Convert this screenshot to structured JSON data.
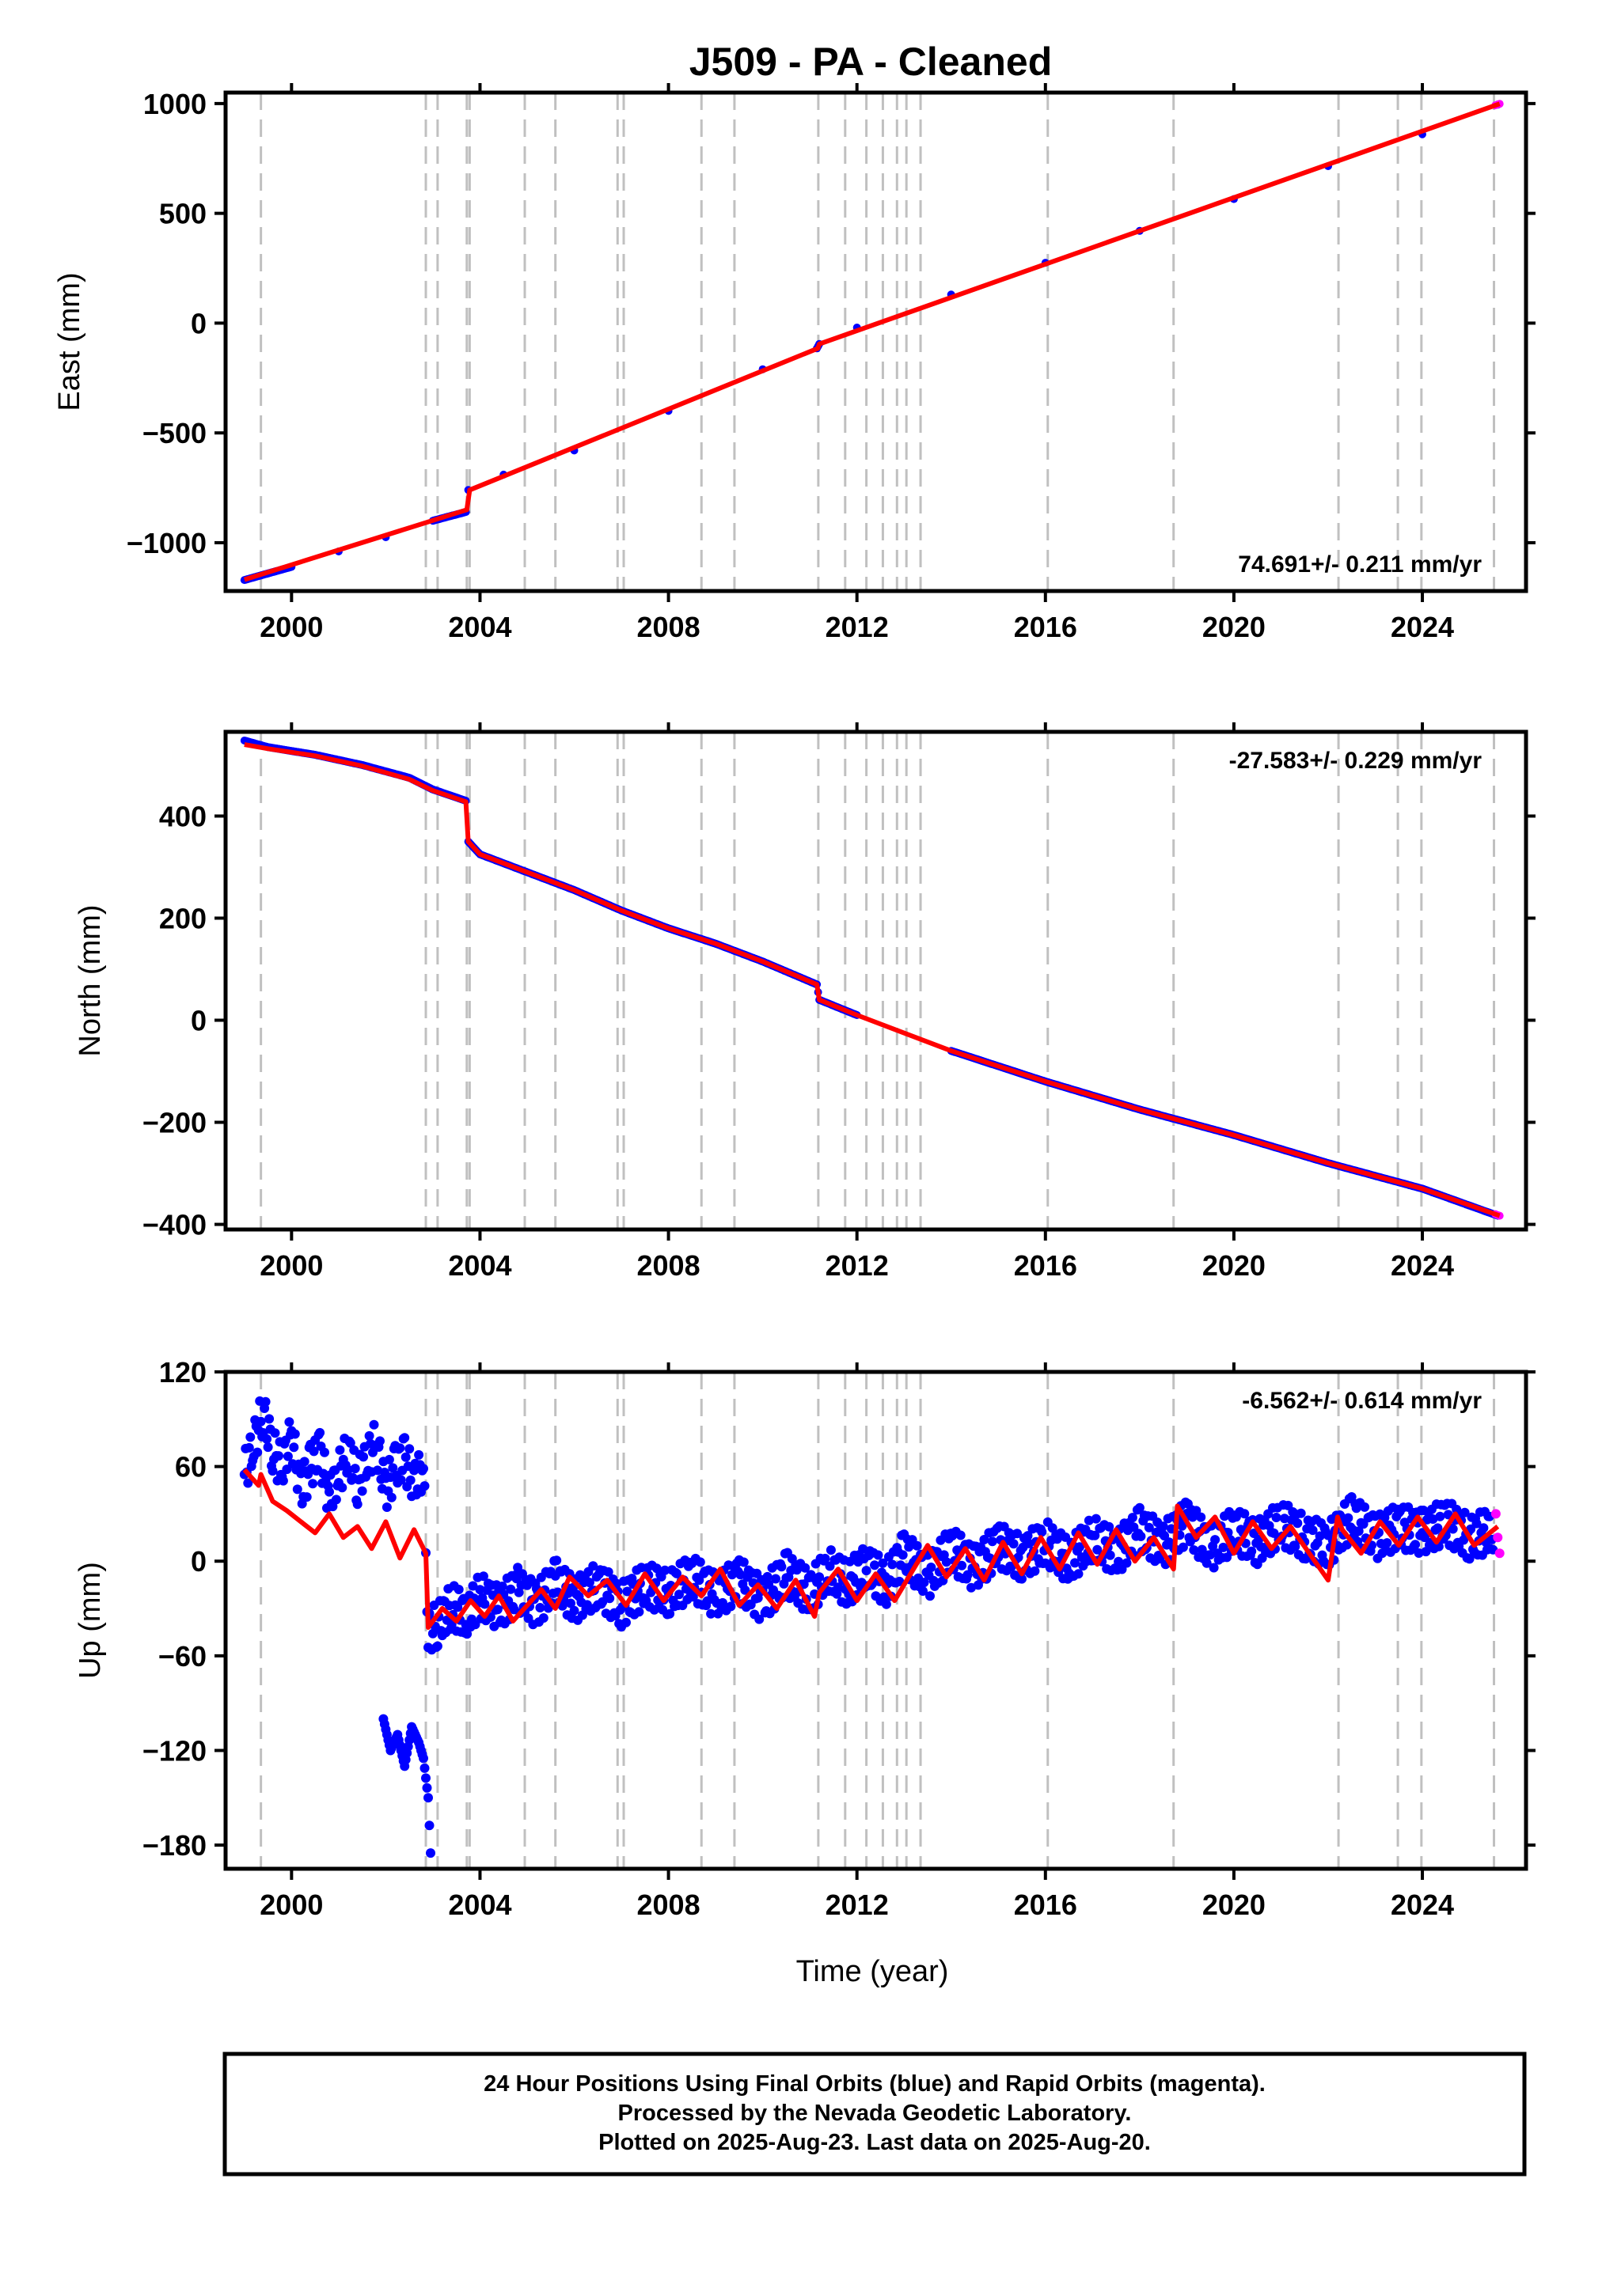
{
  "title": "J509  - PA - Cleaned",
  "xlabel": "Time (year)",
  "colors": {
    "final": "#0000ff",
    "rapid": "#ff00ff",
    "model": "#ff0000",
    "event": "#c0c0c0",
    "frame": "#000000"
  },
  "chart_data": [
    {
      "type": "scatter",
      "ylabel": "East (mm)",
      "rate": "74.691+/- 0.211 mm/yr",
      "rate_position": "bottom-right",
      "xlim": [
        1998.6,
        2026.2
      ],
      "ylim": [
        -1220,
        1050
      ],
      "xticks": [
        2000,
        2004,
        2008,
        2012,
        2016,
        2020,
        2024
      ],
      "xtick_labels": [
        "2000",
        "2004",
        "2008",
        "2012",
        "2016",
        "2020",
        "2024"
      ],
      "yticks": [
        -1000,
        -500,
        0,
        500,
        1000
      ],
      "ytick_labels": [
        "−1000",
        "−500",
        "0",
        "500",
        "1000"
      ],
      "event_lines": [
        1999.35,
        2002.85,
        2003.1,
        2003.72,
        2003.78,
        2004.95,
        2005.6,
        2006.92,
        2007.05,
        2008.7,
        2009.4,
        2011.18,
        2011.75,
        2012.2,
        2012.55,
        2012.85,
        2013.05,
        2013.35,
        2016.05,
        2018.72,
        2022.22,
        2023.48,
        2023.98,
        2025.52
      ],
      "series": [
        {
          "name": "Final Orbits",
          "color": "blue",
          "x": [
            1999.0,
            2000.0,
            2001.0,
            2002.0,
            2003.0,
            2003.7,
            2003.75,
            2004.5,
            2006.0,
            2008.0,
            2010.0,
            2011.15,
            2011.2,
            2012.0,
            2014.0,
            2016.0,
            2018.0,
            2020.0,
            2022.0,
            2024.0,
            2025.6
          ],
          "y": [
            -1170,
            -1110,
            -1040,
            -975,
            -900,
            -860,
            -760,
            -690,
            -580,
            -400,
            -210,
            -115,
            -95,
            -20,
            130,
            275,
            420,
            565,
            715,
            860,
            995
          ]
        },
        {
          "name": "Rapid Orbits",
          "color": "magenta",
          "x": [
            2025.55,
            2025.6,
            2025.64
          ],
          "y": [
            992,
            996,
            999
          ]
        },
        {
          "name": "Model",
          "color": "red",
          "x": [
            1999.0,
            2003.72,
            2003.78,
            2011.17,
            2011.2,
            2025.64
          ],
          "y": [
            -1168,
            -850,
            -760,
            -115,
            -95,
            999
          ]
        }
      ]
    },
    {
      "type": "scatter",
      "ylabel": "North (mm)",
      "rate": "-27.583+/- 0.229 mm/yr",
      "rate_position": "top-right",
      "xlim": [
        1998.6,
        2026.2
      ],
      "ylim": [
        -410,
        565
      ],
      "xticks": [
        2000,
        2004,
        2008,
        2012,
        2016,
        2020,
        2024
      ],
      "xtick_labels": [
        "2000",
        "2004",
        "2008",
        "2012",
        "2016",
        "2020",
        "2024"
      ],
      "yticks": [
        -400,
        -200,
        0,
        200,
        400
      ],
      "ytick_labels": [
        "−400",
        "−200",
        "0",
        "200",
        "400"
      ],
      "event_lines": [
        1999.35,
        2002.85,
        2003.1,
        2003.72,
        2003.78,
        2004.95,
        2005.6,
        2006.92,
        2007.05,
        2008.7,
        2009.4,
        2011.18,
        2011.75,
        2012.2,
        2012.55,
        2012.85,
        2013.05,
        2013.35,
        2016.05,
        2018.72,
        2022.22,
        2023.48,
        2023.98,
        2025.52
      ],
      "series": [
        {
          "name": "Final Orbits",
          "color": "blue",
          "x": [
            1999.0,
            1999.5,
            2000.5,
            2001.5,
            2002.5,
            2003.0,
            2003.7,
            2003.75,
            2004.0,
            2005.0,
            2006.0,
            2007.0,
            2008.0,
            2009.0,
            2010.0,
            2011.15,
            2011.2,
            2012.0,
            2014.0,
            2016.0,
            2018.0,
            2020.0,
            2022.0,
            2024.0,
            2025.6
          ],
          "y": [
            548,
            535,
            520,
            500,
            475,
            452,
            430,
            350,
            325,
            290,
            255,
            215,
            180,
            150,
            115,
            70,
            40,
            10,
            -60,
            -120,
            -175,
            -225,
            -280,
            -330,
            -383
          ]
        },
        {
          "name": "Rapid Orbits",
          "color": "magenta",
          "x": [
            2025.55,
            2025.6,
            2025.64
          ],
          "y": [
            -380,
            -382,
            -383
          ]
        },
        {
          "name": "Model",
          "color": "red",
          "x": [
            1999.0,
            1999.5,
            2000.5,
            2001.5,
            2002.5,
            2003.0,
            2003.7,
            2003.75,
            2004.0,
            2005.0,
            2006.0,
            2007.0,
            2008.0,
            2009.0,
            2010.0,
            2011.15,
            2011.2,
            2012.0,
            2014.0,
            2016.0,
            2018.0,
            2020.0,
            2022.0,
            2024.0,
            2025.64
          ],
          "y": [
            540,
            532,
            518,
            498,
            472,
            450,
            428,
            350,
            325,
            290,
            255,
            215,
            180,
            150,
            115,
            70,
            40,
            10,
            -60,
            -120,
            -175,
            -225,
            -280,
            -330,
            -383
          ]
        }
      ]
    },
    {
      "type": "scatter",
      "ylabel": "Up (mm)",
      "rate": "-6.562+/- 0.614 mm/yr",
      "rate_position": "top-right",
      "xlim": [
        1998.6,
        2026.2
      ],
      "ylim": [
        -195,
        120
      ],
      "xticks": [
        2000,
        2004,
        2008,
        2012,
        2016,
        2020,
        2024
      ],
      "xtick_labels": [
        "2000",
        "2004",
        "2008",
        "2012",
        "2016",
        "2020",
        "2024"
      ],
      "yticks": [
        -180,
        -120,
        -60,
        0,
        60,
        120
      ],
      "ytick_labels": [
        "−180",
        "−120",
        "−60",
        "0",
        "60",
        "120"
      ],
      "event_lines": [
        1999.35,
        2002.85,
        2003.1,
        2003.72,
        2003.78,
        2004.95,
        2005.6,
        2006.92,
        2007.05,
        2008.7,
        2009.4,
        2011.18,
        2011.75,
        2012.2,
        2012.55,
        2012.85,
        2013.05,
        2013.35,
        2016.05,
        2018.72,
        2022.22,
        2023.48,
        2023.98,
        2025.52
      ],
      "series": [
        {
          "name": "Final Orbits",
          "color": "blue",
          "x": [
            1999.0,
            1999.2,
            1999.4,
            1999.6,
            1999.8,
            2000.0,
            2000.2,
            2000.4,
            2000.6,
            2000.8,
            2001.0,
            2001.2,
            2001.4,
            2001.6,
            2001.8,
            2002.0,
            2002.2,
            2002.4,
            2002.6,
            2002.8,
            2002.9,
            2003.1,
            2003.4,
            2003.7,
            2004.0,
            2004.4,
            2004.8,
            2005.2,
            2005.6,
            2006.0,
            2006.5,
            2007.0,
            2007.5,
            2008.0,
            2008.5,
            2009.0,
            2009.5,
            2010.0,
            2010.5,
            2011.0,
            2011.4,
            2011.8,
            2012.2,
            2012.6,
            2013.0,
            2013.5,
            2014.0,
            2014.5,
            2015.0,
            2015.5,
            2016.0,
            2016.5,
            2017.0,
            2017.5,
            2018.0,
            2018.5,
            2019.0,
            2019.5,
            2020.0,
            2020.5,
            2021.0,
            2021.5,
            2022.0,
            2022.5,
            2023.0,
            2023.5,
            2024.0,
            2024.5,
            2025.0,
            2025.5
          ],
          "y": [
            55,
            75,
            95,
            70,
            60,
            80,
            45,
            60,
            70,
            40,
            55,
            70,
            50,
            65,
            75,
            45,
            60,
            65,
            50,
            60,
            -45,
            -40,
            -28,
            -35,
            -22,
            -30,
            -18,
            -28,
            -12,
            -25,
            -15,
            -28,
            -15,
            -20,
            -10,
            -22,
            -12,
            -25,
            -8,
            -20,
            -5,
            -15,
            -2,
            -15,
            5,
            -10,
            8,
            -5,
            10,
            2,
            12,
            0,
            15,
            5,
            20,
            10,
            25,
            8,
            20,
            12,
            24,
            15,
            10,
            28,
            15,
            22,
            18,
            25,
            15,
            20
          ]
        },
        {
          "name": "Final Orbits (cluster 2002)",
          "color": "blue",
          "x": [
            2001.95,
            2002.1,
            2002.25,
            2002.4,
            2002.55,
            2002.7,
            2002.8,
            2002.9,
            2002.95
          ],
          "y": [
            -100,
            -120,
            -110,
            -130,
            -105,
            -115,
            -125,
            -150,
            -185
          ]
        },
        {
          "name": "Rapid Orbits",
          "color": "magenta",
          "x": [
            2025.56,
            2025.6,
            2025.64
          ],
          "y": [
            30,
            15,
            5
          ]
        },
        {
          "name": "Model",
          "color": "red",
          "x": [
            1999.0,
            1999.3,
            1999.35,
            1999.6,
            1999.9,
            2000.2,
            2000.5,
            2000.8,
            2001.1,
            2001.4,
            2001.7,
            2002.0,
            2002.3,
            2002.6,
            2002.85,
            2002.9,
            2003.2,
            2003.5,
            2003.8,
            2004.1,
            2004.4,
            2004.7,
            2005.0,
            2005.3,
            2005.6,
            2005.9,
            2006.3,
            2006.7,
            2007.1,
            2007.5,
            2007.9,
            2008.3,
            2008.7,
            2009.1,
            2009.5,
            2009.9,
            2010.3,
            2010.7,
            2011.1,
            2011.2,
            2011.6,
            2012.0,
            2012.4,
            2012.8,
            2013.2,
            2013.5,
            2013.9,
            2014.3,
            2014.7,
            2015.1,
            2015.5,
            2015.9,
            2016.3,
            2016.7,
            2017.1,
            2017.5,
            2017.9,
            2018.3,
            2018.72,
            2018.8,
            2019.2,
            2019.6,
            2020.0,
            2020.4,
            2020.8,
            2021.2,
            2021.6,
            2022.0,
            2022.2,
            2022.3,
            2022.7,
            2023.1,
            2023.5,
            2023.9,
            2024.3,
            2024.7,
            2025.1,
            2025.6
          ],
          "y": [
            58,
            48,
            55,
            38,
            32,
            25,
            18,
            30,
            15,
            22,
            8,
            25,
            2,
            20,
            5,
            -42,
            -30,
            -38,
            -25,
            -35,
            -22,
            -38,
            -28,
            -18,
            -30,
            -10,
            -22,
            -12,
            -28,
            -8,
            -25,
            -10,
            -22,
            -5,
            -28,
            -15,
            -30,
            -12,
            -35,
            -20,
            -5,
            -25,
            -8,
            -25,
            -5,
            10,
            -10,
            8,
            -12,
            12,
            -8,
            15,
            -5,
            18,
            -2,
            20,
            0,
            15,
            -5,
            35,
            15,
            28,
            5,
            25,
            8,
            22,
            5,
            -12,
            28,
            20,
            5,
            25,
            10,
            28,
            12,
            30,
            10,
            22
          ]
        }
      ]
    }
  ],
  "footer": {
    "line1": "24 Hour Positions Using Final Orbits (blue) and Rapid Orbits (magenta).",
    "line2": "Processed by the Nevada Geodetic Laboratory.",
    "line3": "Plotted on 2025-Aug-23. Last data on 2025-Aug-20."
  }
}
